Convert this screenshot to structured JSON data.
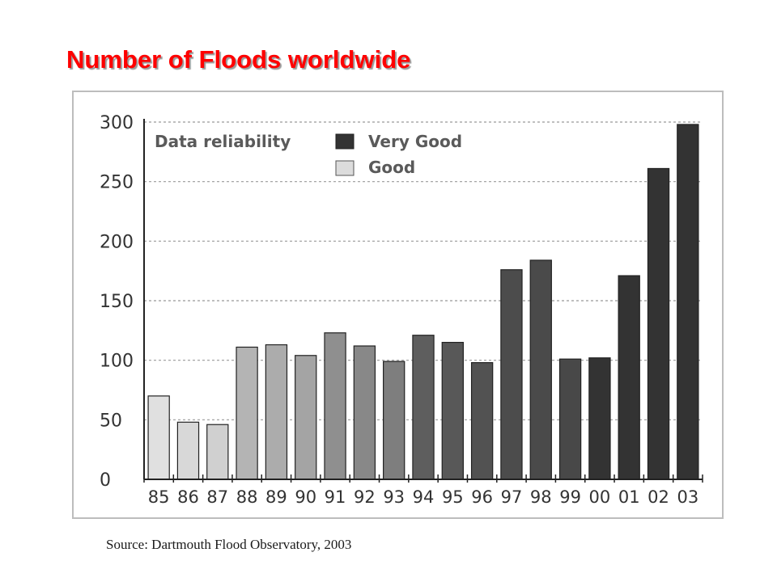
{
  "page": {
    "title": "Number of Floods worldwide",
    "source": "Source: Dartmouth Flood Observatory, 2003"
  },
  "colors": {
    "title": "#ff0000",
    "very_good": "#333333",
    "good": "#dcdcdc",
    "gridline": "#999999",
    "axis_text": "#333333"
  },
  "chart_data": {
    "type": "bar",
    "title": "",
    "xlabel": "",
    "ylabel": "",
    "ylim": [
      0,
      300
    ],
    "yticks": [
      0,
      50,
      100,
      150,
      200,
      250,
      300
    ],
    "grid": true,
    "categories": [
      "85",
      "86",
      "87",
      "88",
      "89",
      "90",
      "91",
      "92",
      "93",
      "94",
      "95",
      "96",
      "97",
      "98",
      "99",
      "00",
      "01",
      "02",
      "03"
    ],
    "values": [
      70,
      48,
      46,
      111,
      113,
      104,
      123,
      112,
      99,
      121,
      115,
      98,
      176,
      184,
      101,
      102,
      171,
      261,
      298
    ],
    "bar_colors": [
      "#e0e0e0",
      "#d8d8d8",
      "#d0d0d0",
      "#b4b4b4",
      "#acacac",
      "#a4a4a4",
      "#8f8f8f",
      "#888888",
      "#7e7e7e",
      "#5e5e5e",
      "#585858",
      "#525252",
      "#4c4c4c",
      "#4a4a4a",
      "#484848",
      "#333333",
      "#333333",
      "#333333",
      "#333333"
    ],
    "legend": {
      "title": "Data reliability",
      "placement": "top-left",
      "entries": [
        {
          "label": "Very Good",
          "color": "#333333"
        },
        {
          "label": "Good",
          "color": "#dcdcdc"
        }
      ]
    }
  }
}
